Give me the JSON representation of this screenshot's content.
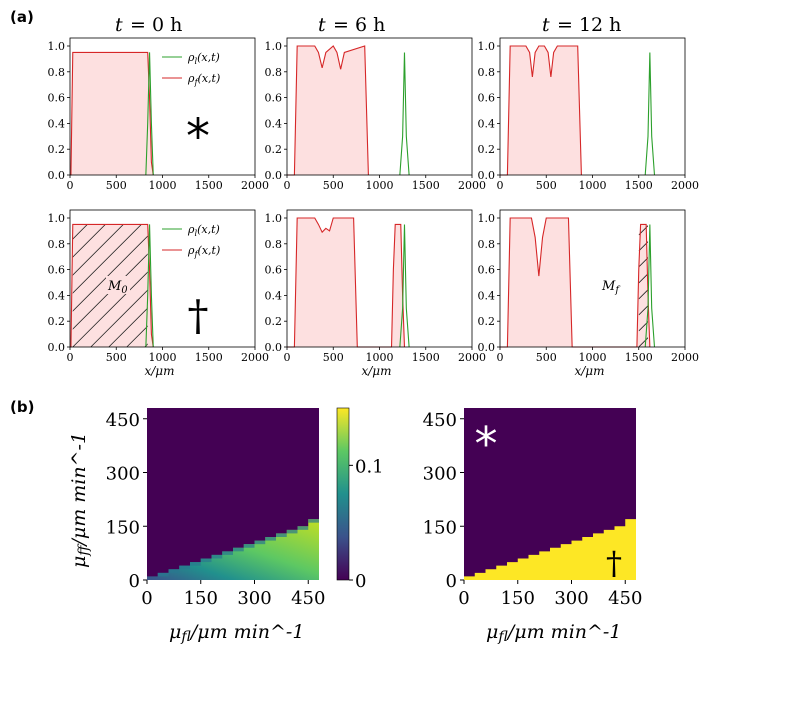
{
  "panel_labels": [
    "(a)",
    "(b)"
  ],
  "legend": {
    "leader": "ρ_l(x,t)",
    "follower": "ρ_f(x,t)"
  },
  "colors": {
    "leader": "#2ca02c",
    "follower": "#d62728",
    "fill": "#fde0e0",
    "viridis_low": "#440154",
    "viridis_high": "#fde725"
  },
  "icons": {
    "star": "asterisk-icon",
    "dagger": "dagger-icon"
  },
  "annotations": {
    "m0": "M_0",
    "mf": "M_f"
  },
  "chart_data": [
    {
      "type": "line",
      "panel": "a-top-0h",
      "title": "t = 0 h",
      "xlim": [
        0,
        2000
      ],
      "ylim": [
        0,
        1.0
      ],
      "xticks": [
        "0",
        "500",
        "1000",
        "1500",
        "2000"
      ],
      "yticks": [
        "0.0",
        "0.2",
        "0.4",
        "0.6",
        "0.8",
        "1.0"
      ],
      "series": [
        {
          "name": "ρ_l(x,t)",
          "x": [
            820,
            840,
            860,
            880,
            900
          ],
          "y": [
            0,
            0.4,
            0.95,
            0.4,
            0
          ]
        },
        {
          "name": "ρ_f(x,t)",
          "x": [
            0,
            10,
            30,
            840,
            860,
            880,
            900
          ],
          "y": [
            0,
            0,
            0.95,
            0.95,
            0.6,
            0.1,
            0
          ]
        }
      ],
      "symbol": "*"
    },
    {
      "type": "line",
      "panel": "a-top-6h",
      "title": "t = 6 h",
      "xlim": [
        0,
        2000
      ],
      "ylim": [
        0,
        1.0
      ],
      "xticks": [
        "0",
        "500",
        "1000",
        "1500",
        "2000"
      ],
      "yticks": [
        "0.0",
        "0.2",
        "0.4",
        "0.6",
        "0.8",
        "1.0"
      ],
      "series": [
        {
          "name": "ρ_l(x,t)",
          "x": [
            1220,
            1250,
            1270,
            1290,
            1320
          ],
          "y": [
            0,
            0.3,
            0.95,
            0.3,
            0
          ]
        },
        {
          "name": "ρ_f(x,t)",
          "x": [
            0,
            80,
            110,
            300,
            340,
            380,
            420,
            500,
            540,
            580,
            620,
            840,
            860,
            880
          ],
          "y": [
            0,
            0,
            1.0,
            1.0,
            0.95,
            0.83,
            0.95,
            1.0,
            0.95,
            0.82,
            0.95,
            1.0,
            0.5,
            0
          ]
        }
      ]
    },
    {
      "type": "line",
      "panel": "a-top-12h",
      "title": "t = 12 h",
      "xlim": [
        0,
        2000
      ],
      "ylim": [
        0,
        1.0
      ],
      "xticks": [
        "0",
        "500",
        "1000",
        "1500",
        "2000"
      ],
      "yticks": [
        "0.0",
        "0.2",
        "0.4",
        "0.6",
        "0.8",
        "1.0"
      ],
      "series": [
        {
          "name": "ρ_l(x,t)",
          "x": [
            1570,
            1600,
            1620,
            1640,
            1670
          ],
          "y": [
            0,
            0.3,
            0.95,
            0.3,
            0
          ]
        },
        {
          "name": "ρ_f(x,t)",
          "x": [
            0,
            80,
            110,
            280,
            320,
            350,
            380,
            420,
            480,
            520,
            550,
            580,
            620,
            840,
            860,
            880
          ],
          "y": [
            0,
            0,
            1.0,
            1.0,
            0.95,
            0.76,
            0.95,
            1.0,
            1.0,
            0.95,
            0.76,
            0.95,
            1.0,
            1.0,
            0.5,
            0
          ]
        }
      ]
    },
    {
      "type": "line",
      "panel": "a-bottom-0h",
      "xlim": [
        0,
        2000
      ],
      "ylim": [
        0,
        1.0
      ],
      "xticks": [
        "0",
        "500",
        "1000",
        "1500",
        "2000"
      ],
      "yticks": [
        "0.0",
        "0.2",
        "0.4",
        "0.6",
        "0.8",
        "1.0"
      ],
      "xlabel": "x/μm",
      "series": [
        {
          "name": "ρ_l(x,t)",
          "x": [
            820,
            840,
            860,
            880,
            900
          ],
          "y": [
            0,
            0.4,
            0.95,
            0.4,
            0
          ]
        },
        {
          "name": "ρ_f(x,t)",
          "x": [
            0,
            10,
            30,
            840,
            860,
            880,
            900
          ],
          "y": [
            0,
            0,
            0.95,
            0.95,
            0.6,
            0.1,
            0
          ]
        }
      ],
      "symbol": "†",
      "annotation": "M_0"
    },
    {
      "type": "line",
      "panel": "a-bottom-6h",
      "xlim": [
        0,
        2000
      ],
      "ylim": [
        0,
        1.0
      ],
      "xticks": [
        "0",
        "500",
        "1000",
        "1500",
        "2000"
      ],
      "yticks": [
        "0.0",
        "0.2",
        "0.4",
        "0.6",
        "0.8",
        "1.0"
      ],
      "xlabel": "x/μm",
      "series": [
        {
          "name": "ρ_l(x,t)",
          "x": [
            1220,
            1250,
            1270,
            1290,
            1320
          ],
          "y": [
            0,
            0.3,
            0.95,
            0.3,
            0
          ]
        },
        {
          "name": "ρ_f(x,t)",
          "x": [
            0,
            80,
            110,
            300,
            340,
            380,
            420,
            460,
            500,
            720,
            740,
            760,
            1130,
            1150,
            1170,
            1230,
            1250,
            1270
          ],
          "y": [
            0,
            0,
            1.0,
            1.0,
            0.95,
            0.89,
            0.92,
            0.9,
            1.0,
            1.0,
            0.5,
            0,
            0,
            0.6,
            0.95,
            0.95,
            0.4,
            0
          ]
        }
      ]
    },
    {
      "type": "line",
      "panel": "a-bottom-12h",
      "xlim": [
        0,
        2000
      ],
      "ylim": [
        0,
        1.0
      ],
      "xticks": [
        "0",
        "500",
        "1000",
        "1500",
        "2000"
      ],
      "yticks": [
        "0.0",
        "0.2",
        "0.4",
        "0.6",
        "0.8",
        "1.0"
      ],
      "xlabel": "x/μm",
      "series": [
        {
          "name": "ρ_l(x,t)",
          "x": [
            1570,
            1600,
            1620,
            1640,
            1670
          ],
          "y": [
            0,
            0.3,
            0.95,
            0.3,
            0
          ]
        },
        {
          "name": "ρ_f(x,t)",
          "x": [
            0,
            80,
            110,
            340,
            380,
            420,
            460,
            500,
            740,
            760,
            780,
            1480,
            1500,
            1520,
            1580,
            1600,
            1620
          ],
          "y": [
            0,
            0,
            1.0,
            1.0,
            0.85,
            0.55,
            0.85,
            1.0,
            1.0,
            0.5,
            0,
            0,
            0.6,
            0.95,
            0.95,
            0.4,
            0
          ]
        }
      ],
      "annotation": "M_f"
    },
    {
      "type": "heatmap",
      "panel": "b-left",
      "xlabel": "μ_fl/μm min^-1",
      "ylabel": "μ_ff/μm min^-1",
      "xticks": [
        "0",
        "150",
        "300",
        "450"
      ],
      "yticks": [
        "0",
        "150",
        "300",
        "450"
      ],
      "xlim": [
        0,
        480
      ],
      "ylim": [
        0,
        480
      ],
      "colorbar": {
        "ticks": [
          "0",
          "0.1"
        ],
        "range": [
          0,
          0.15
        ]
      },
      "boundary_step": [
        [
          0,
          0
        ],
        [
          30,
          10
        ],
        [
          60,
          20
        ],
        [
          90,
          30
        ],
        [
          120,
          40
        ],
        [
          150,
          50
        ],
        [
          180,
          60
        ],
        [
          210,
          70
        ],
        [
          240,
          80
        ],
        [
          270,
          90
        ],
        [
          300,
          100
        ],
        [
          330,
          110
        ],
        [
          360,
          120
        ],
        [
          390,
          130
        ],
        [
          420,
          140
        ],
        [
          450,
          160
        ]
      ]
    },
    {
      "type": "heatmap",
      "panel": "b-right",
      "xlabel": "μ_fl/μm min^-1",
      "xticks": [
        "0",
        "150",
        "300",
        "450"
      ],
      "yticks": [
        "0",
        "150",
        "300",
        "450"
      ],
      "xlim": [
        0,
        480
      ],
      "ylim": [
        0,
        480
      ],
      "symbols": [
        "*",
        "†"
      ],
      "boundary_step": [
        [
          0,
          0
        ],
        [
          30,
          10
        ],
        [
          60,
          20
        ],
        [
          90,
          30
        ],
        [
          120,
          40
        ],
        [
          150,
          50
        ],
        [
          180,
          60
        ],
        [
          210,
          70
        ],
        [
          240,
          80
        ],
        [
          270,
          90
        ],
        [
          300,
          100
        ],
        [
          330,
          110
        ],
        [
          360,
          120
        ],
        [
          390,
          130
        ],
        [
          420,
          140
        ],
        [
          450,
          160
        ]
      ]
    }
  ]
}
